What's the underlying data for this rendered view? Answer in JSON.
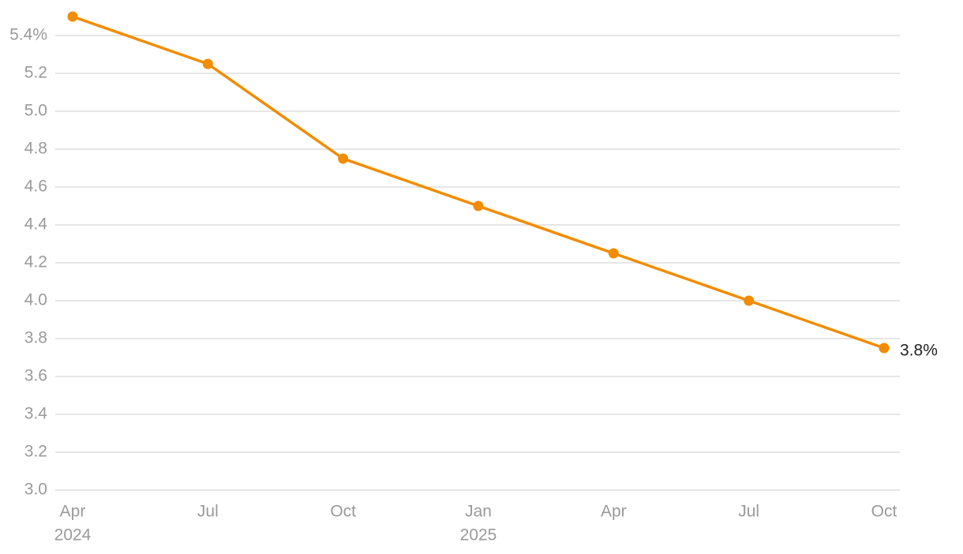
{
  "chart_data": {
    "type": "line",
    "categories": [
      "Apr",
      "Jul",
      "Oct",
      "Jan",
      "Apr",
      "Jul",
      "Oct"
    ],
    "x_sublabels": [
      "2024",
      null,
      null,
      "2025",
      null,
      null,
      null
    ],
    "values": [
      5.5,
      5.25,
      4.75,
      4.5,
      4.25,
      4.0,
      3.75
    ],
    "value_labels": [
      null,
      null,
      null,
      null,
      null,
      null,
      "3.8%"
    ],
    "color": "#f28c00",
    "ylim": [
      3.0,
      5.5
    ],
    "yticks": [
      {
        "value": 3,
        "label": "3.0"
      },
      3.2,
      3.4,
      3.6,
      3.8,
      {
        "value": 4,
        "label": "4.0"
      },
      4.2,
      4.4,
      4.6,
      4.8,
      {
        "value": 5,
        "label": "5.0"
      },
      5.2,
      {
        "value": 5.4,
        "label": "5.4%"
      }
    ],
    "grid": true
  }
}
